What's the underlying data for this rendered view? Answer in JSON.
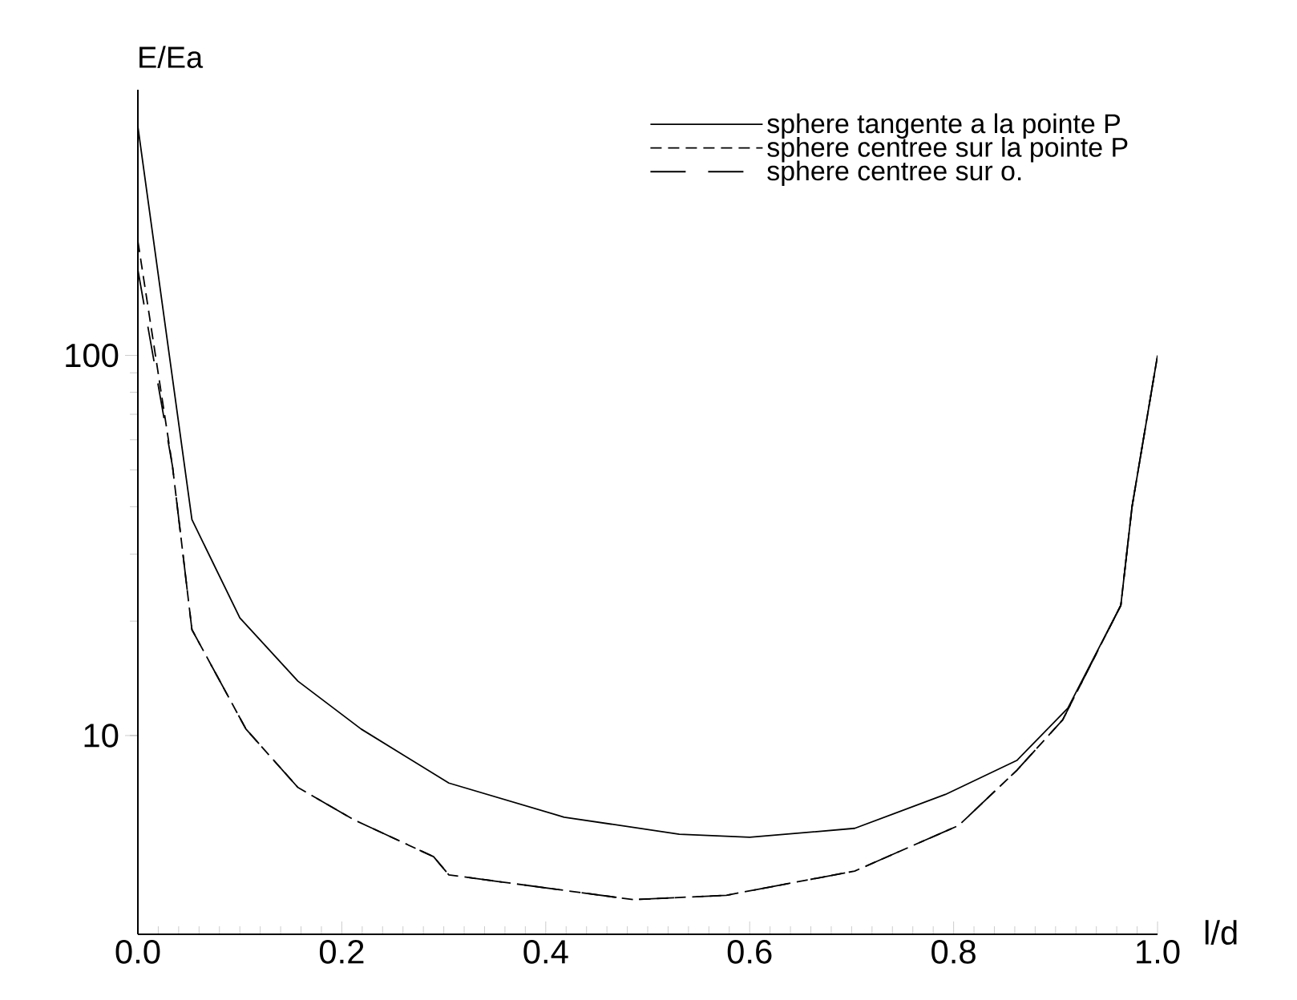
{
  "chart_data": {
    "type": "line",
    "xlabel": "l/d",
    "ylabel": "E/Ea",
    "log": "y",
    "legend": "top right",
    "grid": false,
    "marker": "none",
    "xlim": [
      0,
      1
    ],
    "xticks": [
      {
        "value": 0,
        "label": "0.0"
      },
      0.2,
      0.4,
      0.6,
      0.8,
      {
        "value": 1,
        "label": "1.0"
      }
    ],
    "ylim": [
      3,
      500
    ],
    "yticks": [
      10,
      100
    ],
    "series": [
      {
        "name": "sphere tangente a la pointe P",
        "color": "#000000",
        "line_style": "solid",
        "x": [
          0,
          0.053,
          0.1,
          0.157,
          0.219,
          0.305,
          0.418,
          0.531,
          0.6,
          0.703,
          0.792,
          0.862,
          0.912,
          0.964,
          0.975,
          1.0
        ],
        "values": [
          400,
          37,
          20.4,
          13.9,
          10.4,
          7.5,
          6.1,
          5.5,
          5.4,
          5.7,
          7.0,
          8.6,
          11.8,
          22,
          40,
          100
        ]
      },
      {
        "name": "sphere centree sur la pointe P",
        "color": "#000000",
        "line_style": "dashed",
        "x": [
          0,
          0.034,
          0.053,
          0.106,
          0.157,
          0.212,
          0.29,
          0.305,
          0.486,
          0.577,
          0.703,
          0.805,
          0.862,
          0.907,
          0.964,
          0.975,
          1.0
        ],
        "values": [
          200,
          51,
          19,
          10.4,
          7.3,
          6.0,
          4.8,
          4.3,
          3.7,
          3.8,
          4.4,
          5.8,
          8.1,
          11,
          22,
          40,
          100
        ]
      },
      {
        "name": "sphere centree sur o.",
        "color": "#000000",
        "line_style": "long dashed",
        "x": [
          0,
          0.034,
          0.053,
          0.106,
          0.157,
          0.212,
          0.29,
          0.305,
          0.486,
          0.577,
          0.703,
          0.805,
          0.862,
          0.907,
          0.964,
          0.975,
          1.0
        ],
        "values": [
          168,
          51,
          19,
          10.4,
          7.3,
          6.0,
          4.8,
          4.3,
          3.7,
          3.8,
          4.4,
          5.8,
          8.1,
          11,
          22,
          40,
          100
        ]
      }
    ]
  }
}
